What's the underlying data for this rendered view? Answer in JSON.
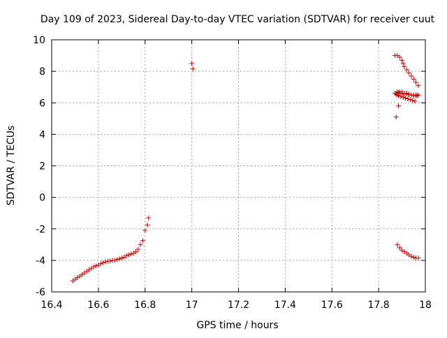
{
  "chart_data": {
    "type": "scatter",
    "title": "Day 109 of 2023, Sidereal Day-to-day VTEC variation (SDTVAR) for receiver cuut",
    "xlabel": "GPS time / hours",
    "ylabel": "SDTVAR / TECUs",
    "xlim": [
      16.4,
      18.0
    ],
    "ylim": [
      -6,
      10
    ],
    "xticks": [
      16.4,
      16.6,
      16.8,
      17.0,
      17.2,
      17.4,
      17.6,
      17.8,
      18.0
    ],
    "xtick_labels": [
      "16.4",
      "16.6",
      "16.8",
      "17",
      "17.2",
      "17.4",
      "17.6",
      "17.8",
      "18"
    ],
    "yticks": [
      -6,
      -4,
      -2,
      0,
      2,
      4,
      6,
      8,
      10
    ],
    "ytick_labels": [
      "-6",
      "-4",
      "-2",
      "0",
      "2",
      "4",
      "6",
      "8",
      "10"
    ],
    "grid": true,
    "marker": "+",
    "marker_color": "#cc0000",
    "series": [
      {
        "name": "SDTVAR",
        "x": [
          16.49,
          16.5,
          16.51,
          16.52,
          16.53,
          16.54,
          16.55,
          16.56,
          16.57,
          16.58,
          16.59,
          16.6,
          16.61,
          16.62,
          16.63,
          16.64,
          16.65,
          16.66,
          16.67,
          16.68,
          16.69,
          16.7,
          16.71,
          16.72,
          16.73,
          16.74,
          16.75,
          16.76,
          16.77,
          16.78,
          16.79,
          16.8,
          16.81,
          16.815,
          17.0,
          17.005,
          17.87,
          17.88,
          17.89,
          17.9,
          17.905,
          17.91,
          17.92,
          17.93,
          17.94,
          17.95,
          17.96,
          17.97,
          17.87,
          17.875,
          17.88,
          17.885,
          17.89,
          17.895,
          17.9,
          17.905,
          17.91,
          17.915,
          17.92,
          17.925,
          17.93,
          17.935,
          17.94,
          17.945,
          17.95,
          17.955,
          17.96,
          17.965,
          17.97,
          17.88,
          17.885,
          17.89,
          17.9,
          17.91,
          17.92,
          17.93,
          17.94,
          17.95,
          17.96,
          17.97,
          17.875,
          17.885,
          17.88,
          17.89,
          17.9,
          17.91,
          17.92,
          17.93,
          17.94,
          17.95,
          17.96,
          17.97
        ],
        "y": [
          -5.3,
          -5.2,
          -5.1,
          -5.0,
          -4.9,
          -4.8,
          -4.7,
          -4.6,
          -4.5,
          -4.4,
          -4.35,
          -4.3,
          -4.2,
          -4.15,
          -4.1,
          -4.05,
          -4.05,
          -4.0,
          -4.0,
          -3.95,
          -3.9,
          -3.85,
          -3.8,
          -3.7,
          -3.65,
          -3.6,
          -3.55,
          -3.45,
          -3.3,
          -3.0,
          -2.75,
          -2.1,
          -1.75,
          -1.3,
          8.5,
          8.15,
          9.0,
          9.0,
          8.9,
          8.7,
          8.5,
          8.3,
          8.1,
          7.9,
          7.7,
          7.5,
          7.3,
          7.1,
          6.6,
          6.55,
          6.5,
          6.45,
          6.6,
          6.4,
          6.7,
          6.35,
          6.6,
          6.3,
          6.6,
          6.25,
          6.55,
          6.2,
          6.5,
          6.15,
          6.5,
          6.1,
          6.45,
          6.45,
          6.5,
          6.7,
          6.65,
          6.7,
          6.6,
          6.55,
          6.6,
          6.5,
          6.5,
          6.45,
          6.5,
          6.5,
          5.1,
          5.8,
          -3.0,
          -3.2,
          -3.35,
          -3.45,
          -3.55,
          -3.65,
          -3.75,
          -3.8,
          -3.85,
          -3.85
        ]
      }
    ]
  }
}
